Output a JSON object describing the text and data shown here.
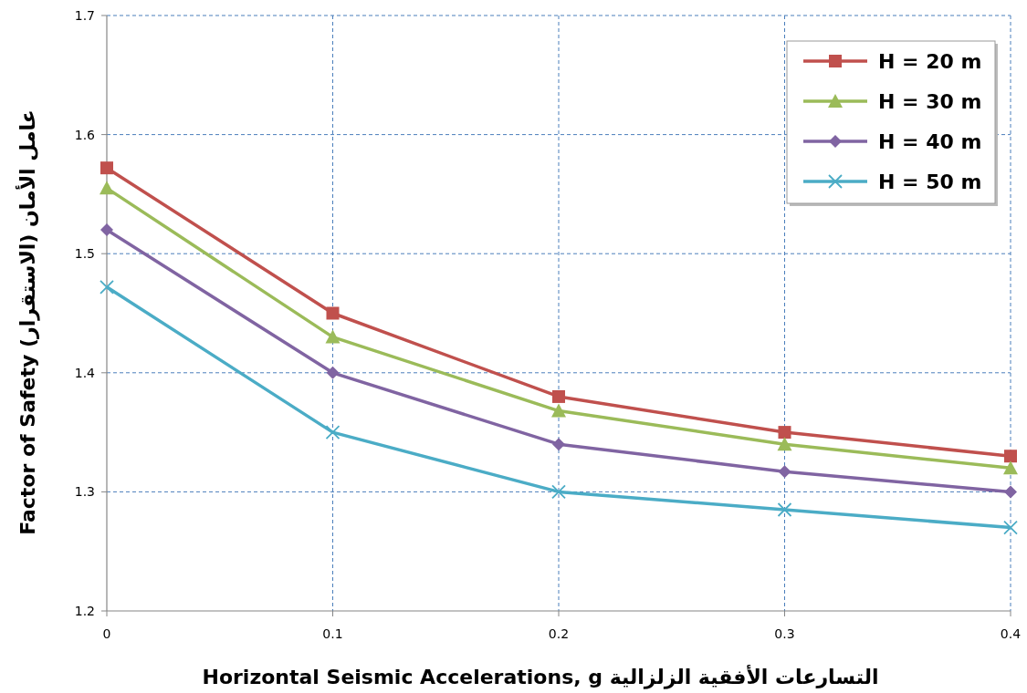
{
  "chart_data": {
    "type": "line",
    "xlabel": "Horizontal  Seismic Accelerations, g  التسارعات الأفقية الزلزالية",
    "ylabel": "Factor of Safety عامل الأمان (الاستقرار)",
    "x": [
      0,
      0.1,
      0.2,
      0.3,
      0.4
    ],
    "xlim": [
      0,
      0.4
    ],
    "xticks": [
      0,
      0.1,
      0.2,
      0.3,
      0.4
    ],
    "ylim": [
      1.2,
      1.7
    ],
    "yticks": [
      1.2,
      1.3,
      1.4,
      1.5,
      1.6,
      1.7
    ],
    "grid": true,
    "legend": "top right",
    "line_style": "solid",
    "series": [
      {
        "name": "H = 20 m",
        "color": "#c0504d",
        "marker": "square",
        "values": [
          1.572,
          1.45,
          1.38,
          1.35,
          1.33
        ]
      },
      {
        "name": "H = 30 m",
        "color": "#9bbb59",
        "marker": "triangle",
        "values": [
          1.555,
          1.43,
          1.368,
          1.34,
          1.32
        ]
      },
      {
        "name": "H = 40 m",
        "color": "#8064a2",
        "marker": "diamond",
        "values": [
          1.52,
          1.4,
          1.34,
          1.317,
          1.3
        ]
      },
      {
        "name": "H = 50 m",
        "color": "#4bacc6",
        "marker": "cross",
        "values": [
          1.472,
          1.35,
          1.3,
          1.285,
          1.27
        ]
      }
    ]
  }
}
